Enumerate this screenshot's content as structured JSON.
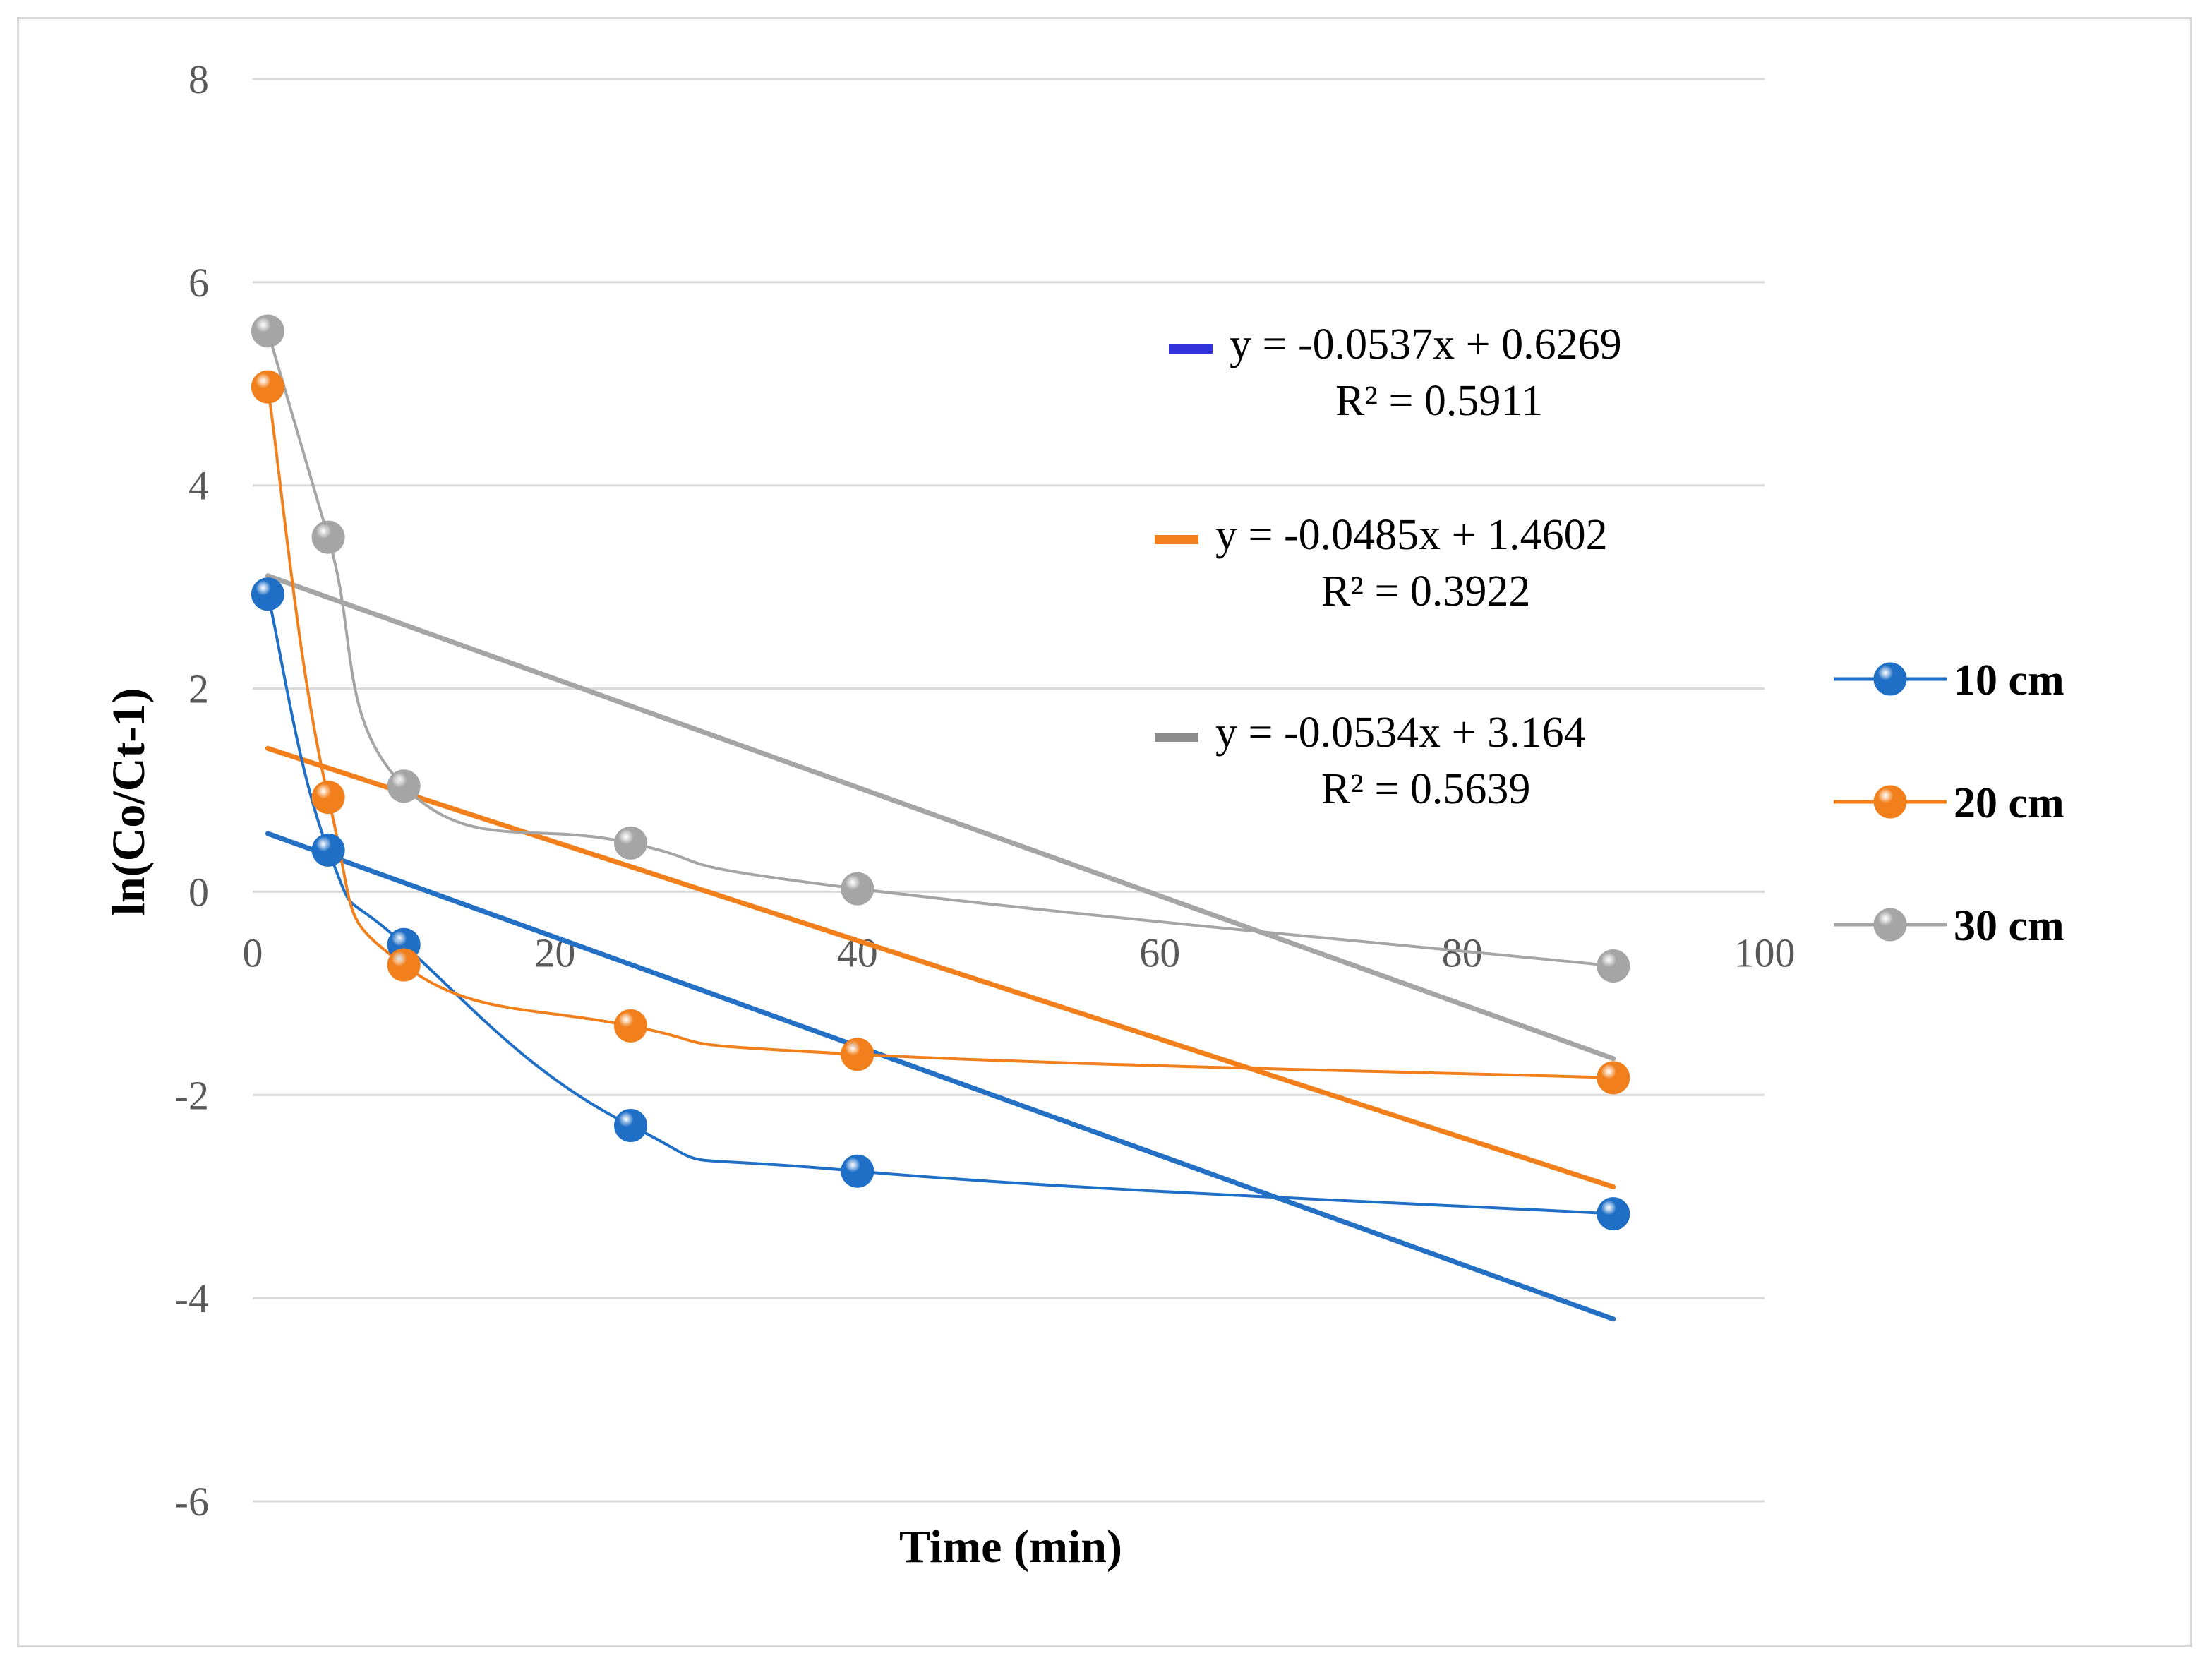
{
  "chart_data": {
    "type": "scatter",
    "title": "",
    "xlabel": "Time (min)",
    "ylabel": "ln(Co/Ct-1)",
    "xlim": [
      0,
      100
    ],
    "ylim": [
      -6,
      8
    ],
    "xticks": [
      0,
      20,
      40,
      60,
      80,
      100
    ],
    "yticks": [
      8,
      6,
      4,
      2,
      0,
      -2,
      -4,
      -6
    ],
    "grid": true,
    "legend_position": "right",
    "series": [
      {
        "name": "10 cm",
        "color": "#1f6fc6",
        "x": [
          1,
          5,
          10,
          25,
          40,
          90
        ],
        "y": [
          2.93,
          0.41,
          -0.52,
          -2.3,
          -2.75,
          -3.17
        ],
        "trendline": {
          "slope": -0.0537,
          "intercept": 0.6269,
          "x_range": [
            1,
            90
          ],
          "color": "#2470c4",
          "equation": "y = -0.0537x + 0.6269",
          "r2": "R² = 0.5911",
          "label_swatch": "#3333dd"
        }
      },
      {
        "name": "20 cm",
        "color": "#f07f1c",
        "x": [
          1,
          5,
          10,
          25,
          40,
          90
        ],
        "y": [
          4.97,
          0.93,
          -0.72,
          -1.32,
          -1.6,
          -1.83
        ],
        "trendline": {
          "slope": -0.0485,
          "intercept": 1.4602,
          "x_range": [
            1,
            90
          ],
          "color": "#f07f1c",
          "equation": "y = -0.0485x + 1.4602",
          "r2": "R² = 0.3922",
          "label_swatch": "#f07f1c"
        }
      },
      {
        "name": "30 cm",
        "color": "#a5a5a5",
        "x": [
          1,
          5,
          10,
          25,
          40,
          90
        ],
        "y": [
          5.52,
          3.49,
          1.04,
          0.48,
          0.03,
          -0.73
        ],
        "trendline": {
          "slope": -0.0534,
          "intercept": 3.164,
          "x_range": [
            1,
            90
          ],
          "color": "#a5a5a5",
          "equation": "y = -0.0534x + 3.164",
          "r2": "R² = 0.5639",
          "label_swatch": "#8c8c8c"
        }
      }
    ]
  }
}
